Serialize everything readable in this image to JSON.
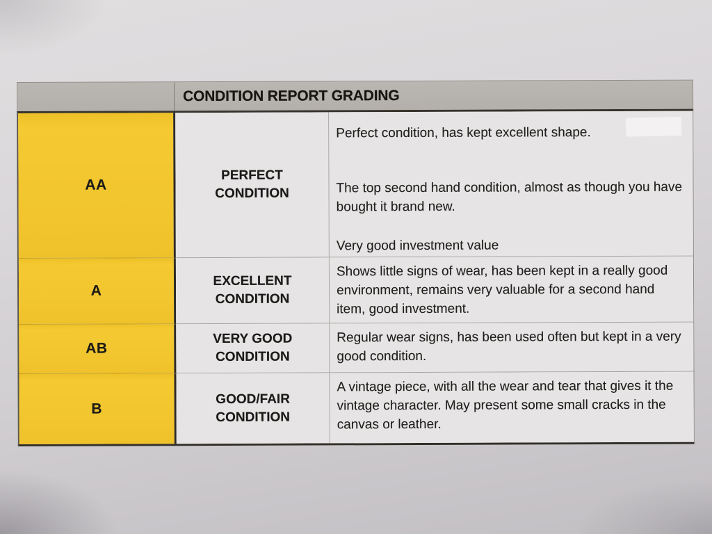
{
  "document": {
    "title": "CONDITION REPORT GRADING",
    "table": {
      "rows": [
        {
          "grade": "AA",
          "condition": "PERFECT CONDITION",
          "description": [
            "Perfect condition, has kept excellent shape.",
            "The top second hand condition, almost as though you have bought it brand new.",
            "Very good investment value"
          ]
        },
        {
          "grade": "A",
          "condition": "EXCELLENT CONDITION",
          "description": [
            "Shows little signs of wear, has been kept in a really good environment, remains very valuable for a second hand item, good investment."
          ]
        },
        {
          "grade": "AB",
          "condition": "VERY GOOD CONDITION",
          "description": [
            "Regular wear signs, has been used often but kept in a very good condition."
          ]
        },
        {
          "grade": "B",
          "condition": "GOOD/FAIR CONDITION",
          "description": [
            "A vintage piece, with all the wear and tear that gives it the vintage character. May present some small cracks in the canvas or leather."
          ]
        }
      ]
    },
    "colors": {
      "grade_column_yellow": "#f2c52e",
      "header_bar_gray": "#b5b1ae",
      "cell_background": "#e7e4e5",
      "paper_background": "#d6d3d8",
      "ink": "#1c1b19"
    }
  }
}
